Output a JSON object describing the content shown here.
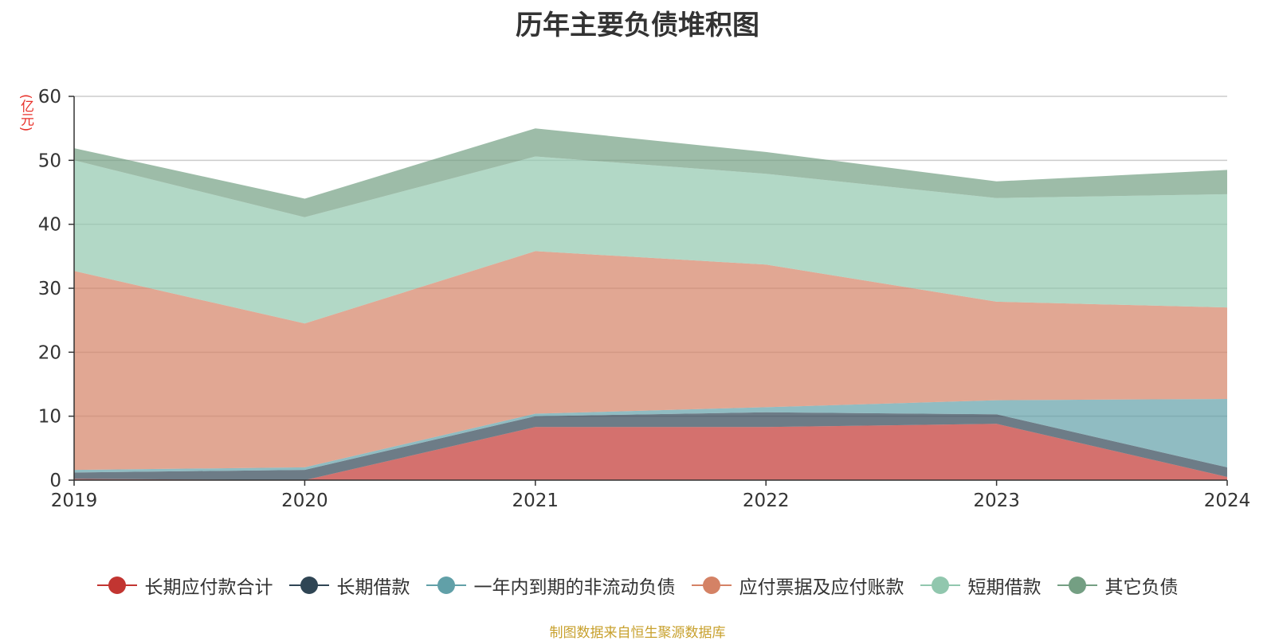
{
  "chart_data": {
    "type": "area",
    "stacked": true,
    "title": "历年主要负债堆积图",
    "y_unit": "(亿元)",
    "x": [
      "2019",
      "2020",
      "2021",
      "2022",
      "2023",
      "2024"
    ],
    "ylim": [
      0,
      60
    ],
    "yticks": [
      0,
      10,
      20,
      30,
      40,
      50,
      60
    ],
    "grid": true,
    "legend_position": "bottom",
    "series": [
      {
        "name": "长期应付款合计",
        "color": "#c23531",
        "values": [
          0.2,
          0.0,
          8.3,
          8.3,
          8.8,
          0.5
        ]
      },
      {
        "name": "长期借款",
        "color": "#2f4554",
        "values": [
          1.0,
          1.6,
          1.7,
          2.3,
          1.5,
          1.5
        ]
      },
      {
        "name": "一年内到期的非流动负债",
        "color": "#61a0a8",
        "values": [
          0.4,
          0.4,
          0.4,
          0.8,
          2.2,
          10.7
        ]
      },
      {
        "name": "应付票据及应付账款",
        "color": "#d48265",
        "values": [
          31.1,
          22.5,
          25.4,
          22.3,
          15.4,
          14.3
        ]
      },
      {
        "name": "短期借款",
        "color": "#91c7ae",
        "values": [
          17.3,
          16.6,
          14.8,
          14.2,
          16.2,
          17.7
        ]
      },
      {
        "name": "其它负债",
        "color": "#749f83",
        "values": [
          1.9,
          2.9,
          4.4,
          3.4,
          2.6,
          3.8
        ]
      }
    ]
  },
  "source_note": "制图数据来自恒生聚源数据库"
}
